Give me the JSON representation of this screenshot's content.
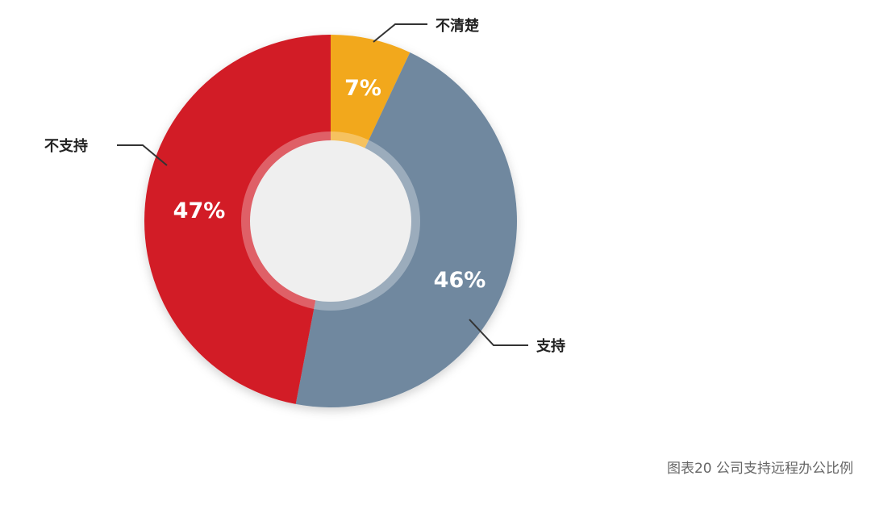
{
  "chart_data": {
    "type": "pie",
    "subtype": "donut",
    "slices": [
      {
        "label": "不清楚",
        "value": 7,
        "value_label": "7%",
        "color": "#F2A81D"
      },
      {
        "label": "支持",
        "value": 46,
        "value_label": "46%",
        "color": "#6F889F"
      },
      {
        "label": "不支持",
        "value": 47,
        "value_label": "47%",
        "color": "#D21B25"
      }
    ],
    "start": "top",
    "direction": "clockwise",
    "center_color": "#EFEFEF",
    "caption": "图表20 公司支持远程办公比例"
  }
}
